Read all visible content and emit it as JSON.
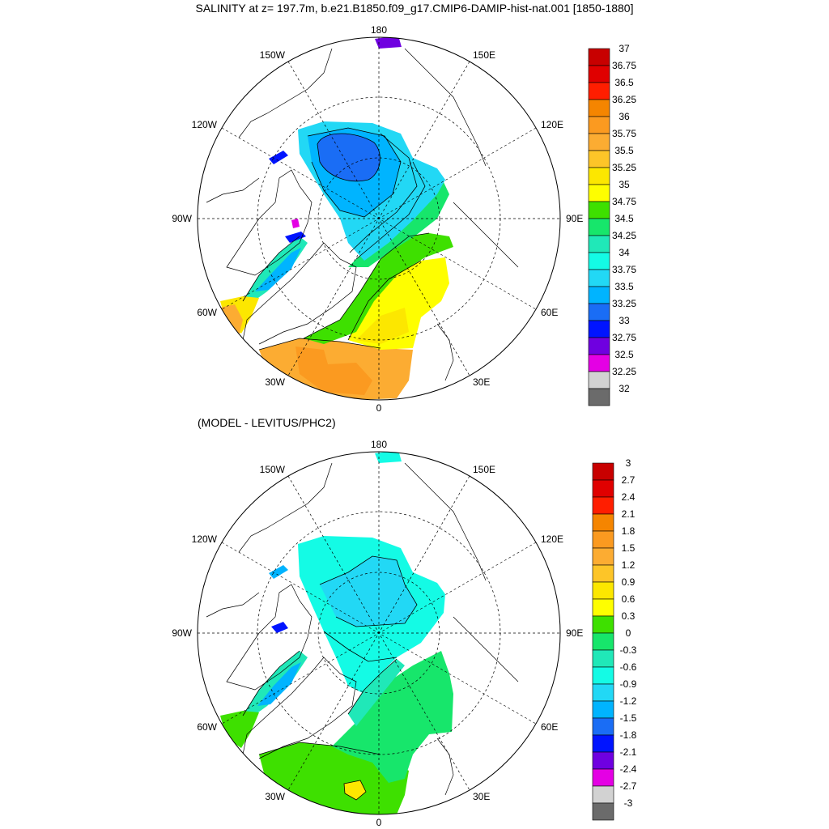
{
  "title": "SALINITY at z= 197.7m, b.e21.B1850.f09_g17.CMIP6-DAMIP-hist-nat.001 [1850-1880]",
  "subtitle": "(MODEL - LEVITUS/PHC2)",
  "longitude_labels": {
    "top": "180",
    "bottom": "0",
    "left": "90W",
    "right": "90E",
    "upper_left": "150W",
    "upper_right": "150E",
    "mid_left": "120W",
    "mid_right": "120E",
    "lower_left": "60W",
    "lower_right": "60E",
    "bottom_left": "30W",
    "bottom_right": "30E"
  },
  "colorbar_top": {
    "labels": [
      "37",
      "36.75",
      "36.5",
      "36.25",
      "36",
      "35.75",
      "35.5",
      "35.25",
      "35",
      "34.75",
      "34.5",
      "34.25",
      "34",
      "33.75",
      "33.5",
      "33.25",
      "33",
      "32.75",
      "32.5",
      "32.25",
      "32"
    ],
    "colors": [
      "#c80000",
      "#e00000",
      "#ff1e00",
      "#f58500",
      "#fb9a20",
      "#fcac32",
      "#fdc528",
      "#fce700",
      "#fefe00",
      "#3ee000",
      "#17e66b",
      "#20e8b8",
      "#14fbe5",
      "#22d8f5",
      "#00b4ff",
      "#1a6df5",
      "#0014ff",
      "#6f00e0",
      "#e400e4",
      "#d2d2d2"
    ],
    "last_color": "#6b6b6b"
  },
  "colorbar_bottom": {
    "labels": [
      "3",
      "2.7",
      "2.4",
      "2.1",
      "1.8",
      "1.5",
      "1.2",
      "0.9",
      "0.6",
      "0.3",
      "0",
      "-0.3",
      "-0.6",
      "-0.9",
      "-1.2",
      "-1.5",
      "-1.8",
      "-2.1",
      "-2.4",
      "-2.7",
      "-3"
    ],
    "colors": [
      "#c80000",
      "#e00000",
      "#ff1e00",
      "#f58500",
      "#fb9a20",
      "#fcac32",
      "#fdc528",
      "#fce700",
      "#fefe00",
      "#3ee000",
      "#17e66b",
      "#20e8b8",
      "#14fbe5",
      "#22d8f5",
      "#00b4ff",
      "#1a6df5",
      "#0014ff",
      "#6f00e0",
      "#e400e4",
      "#d2d2d2"
    ],
    "last_color": "#6b6b6b"
  },
  "field_colors": {
    "top_basin_fill": "#22d8f5",
    "top_core": "#1a6df5",
    "top_ring": "#00b4ff",
    "top_atlantic_green": "#3ee000",
    "top_atlantic_green2": "#17e66b",
    "top_yellow": "#fefe00",
    "top_yellow2": "#fce700",
    "top_orange": "#fcac32",
    "top_orange2": "#fb9a20",
    "top_coast_teal": "#20e8b8",
    "top_canada_blue": "#0014ff",
    "top_purple": "#6f00e0",
    "top_magenta": "#e400e4",
    "bottom_basin": "#14fbe5",
    "bottom_core": "#22d8f5",
    "bottom_teal": "#20e8b8",
    "bottom_green": "#17e66b",
    "bottom_yellowgreen": "#3ee000",
    "bottom_yellow": "#fce700",
    "bottom_blue": "#00b4ff",
    "bottom_deepblue": "#0014ff"
  }
}
